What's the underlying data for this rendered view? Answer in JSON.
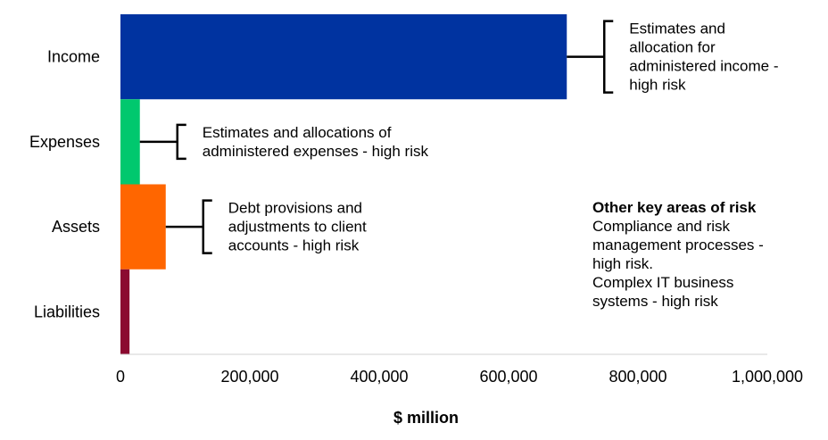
{
  "chart_data": {
    "type": "bar",
    "orientation": "horizontal",
    "title": "",
    "xlabel": "$ million",
    "ylabel": "",
    "xlim": [
      0,
      1000000
    ],
    "xticks": [
      0,
      200000,
      400000,
      600000,
      800000,
      1000000
    ],
    "xtick_labels": [
      "0",
      "200,000",
      "400,000",
      "600,000",
      "800,000",
      "1,000,000"
    ],
    "grid": false,
    "legend": "none",
    "categories": [
      "Income",
      "Expenses",
      "Assets",
      "Liabilities"
    ],
    "values": [
      690000,
      30000,
      70000,
      14000
    ],
    "colors": [
      "#0033A0",
      "#00C86E",
      "#FF6600",
      "#8B0A30"
    ],
    "annotations": [
      {
        "category": "Income",
        "lines": [
          "Estimates and",
          "allocation for",
          "administered income -",
          "high risk"
        ]
      },
      {
        "category": "Expenses",
        "lines": [
          "Estimates and allocations of",
          "administered expenses - high risk"
        ]
      },
      {
        "category": "Assets",
        "lines": [
          "Debt provisions and",
          "adjustments to client",
          "accounts - high risk"
        ]
      }
    ],
    "other_risks": {
      "title": "Other key areas of risk",
      "lines": [
        "Compliance and risk",
        "management processes -",
        "high risk.",
        "Complex IT business",
        "systems - high risk"
      ]
    }
  }
}
